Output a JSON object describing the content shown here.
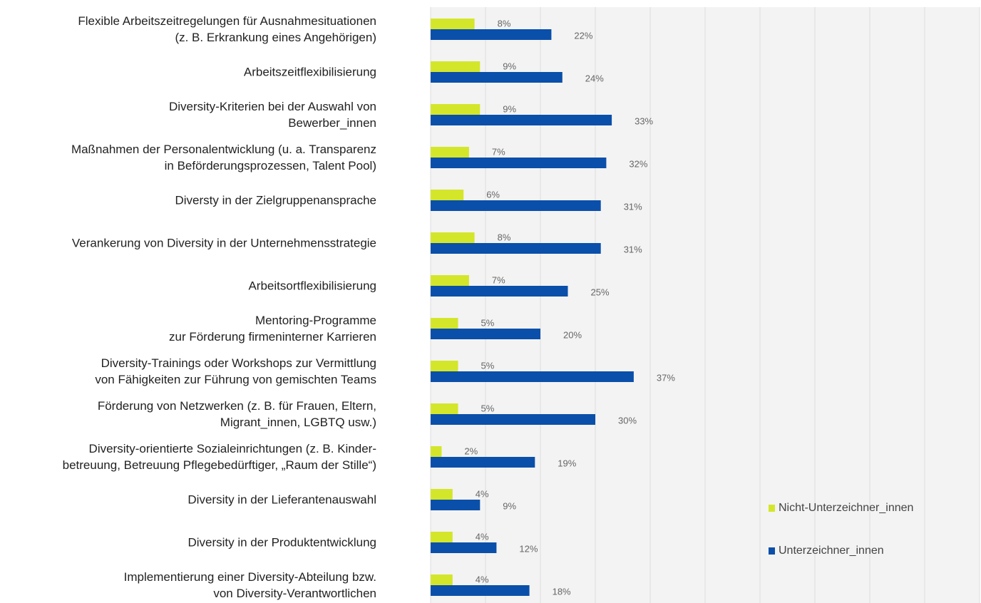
{
  "chart_data": {
    "type": "bar",
    "orientation": "horizontal",
    "categories": [
      "Flexible Arbeitszeitregelungen für Ausnahmesituationen\n(z. B. Erkrankung eines Angehörigen)",
      "Arbeitszeitflexibilisierung",
      "Diversity-Kriterien bei der Auswahl von\nBewerber_innen",
      "Maßnahmen der Personalentwicklung (u. a. Transparenz\nin Beförderungsprozessen, Talent Pool)",
      "Diversty in der Zielgruppenansprache",
      "Verankerung von Diversity in der Unternehmensstrategie",
      "Arbeitsortflexibilisierung",
      "Mentoring-Programme\nzur Förderung firmeninterner Karrieren",
      "Diversity-Trainings oder Workshops zur Vermittlung\nvon Fähigkeiten zur Führung von gemischten Teams",
      "Förderung von Netzwerken (z. B. für Frauen, Eltern,\nMigrant_innen, LGBTQ usw.)",
      "Diversity-orientierte Sozialeinrichtungen (z. B. Kinder-\nbetreuung, Betreuung Pflegebedürftiger, „Raum der Stille“)",
      "Diversity in der Lieferantenauswahl",
      "Diversity in der Produktentwicklung",
      "Implementierung einer Diversity-Abteilung bzw.\nvon Diversity-Verantwortlichen"
    ],
    "series": [
      {
        "name": "Nicht-Unterzeichner_innen",
        "color": "#d4e62a",
        "values": [
          8,
          9,
          9,
          7,
          6,
          8,
          7,
          5,
          5,
          5,
          2,
          4,
          4,
          4
        ],
        "value_labels": [
          "8%",
          "9%",
          "9%",
          "7%",
          "6%",
          "8%",
          "7%",
          "5%",
          "5%",
          "5%",
          "2%",
          "4%",
          "4%",
          "4%"
        ]
      },
      {
        "name": "Unterzeichner_innen",
        "color": "#0a4faa",
        "values": [
          22,
          24,
          33,
          32,
          31,
          31,
          25,
          20,
          37,
          30,
          19,
          9,
          12,
          18
        ],
        "value_labels": [
          "22%",
          "24%",
          "33%",
          "32%",
          "31%",
          "31%",
          "25%",
          "20%",
          "37%",
          "30%",
          "19%",
          "9%",
          "12%",
          "18%"
        ]
      }
    ],
    "xlim": [
      0,
      100
    ],
    "xticks": [
      0,
      10,
      20,
      30,
      40,
      50,
      60,
      70,
      80,
      90,
      100
    ],
    "grid": true
  }
}
